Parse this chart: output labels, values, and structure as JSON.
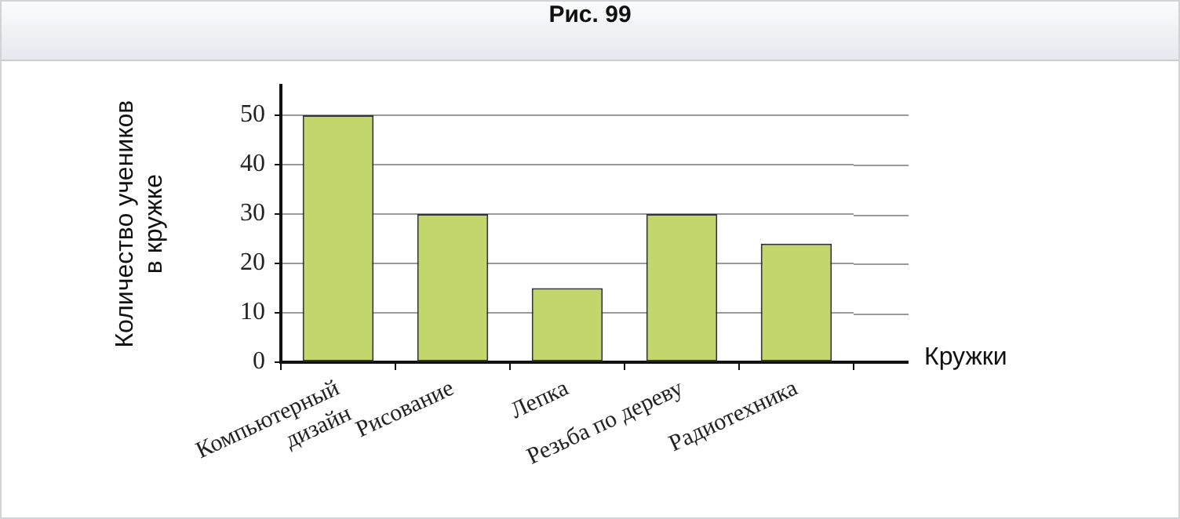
{
  "chart_data": {
    "type": "bar",
    "title": "Рис. 99",
    "xlabel": "Кружки",
    "ylabel": "Количество учеников в кружке",
    "categories": [
      "Компьютерный дизайн",
      "Рисование",
      "Лепка",
      "Резьба по дереву",
      "Радиотехника"
    ],
    "values": [
      50,
      30,
      15,
      30,
      24
    ],
    "color": "#c3d66b",
    "ylim": [
      0,
      56
    ],
    "yticks": [
      0,
      10,
      20,
      30,
      40,
      50
    ],
    "grid": "y",
    "legend": false
  }
}
